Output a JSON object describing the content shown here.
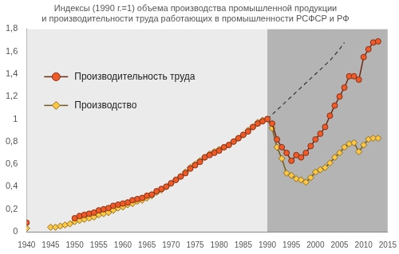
{
  "chart_data": {
    "type": "line",
    "title": [
      "Индексы (1990 г.=1) объема производства промышленной продукции",
      "и производительности труда работающих в промышленности РСФСР и РФ"
    ],
    "x": [
      1940,
      1941,
      1942,
      1943,
      1944,
      1945,
      1946,
      1947,
      1948,
      1949,
      1950,
      1951,
      1952,
      1953,
      1954,
      1955,
      1956,
      1957,
      1958,
      1959,
      1960,
      1961,
      1962,
      1963,
      1964,
      1965,
      1966,
      1967,
      1968,
      1969,
      1970,
      1971,
      1972,
      1973,
      1974,
      1975,
      1976,
      1977,
      1978,
      1979,
      1980,
      1981,
      1982,
      1983,
      1984,
      1985,
      1986,
      1987,
      1988,
      1989,
      1990,
      1991,
      1992,
      1993,
      1994,
      1995,
      1996,
      1997,
      1998,
      1999,
      2000,
      2001,
      2002,
      2003,
      2004,
      2005,
      2006,
      2007,
      2008,
      2009,
      2010,
      2011,
      2012,
      2013
    ],
    "series": [
      {
        "name": "Производительность труда",
        "color": "#f05a28",
        "marker": "circle",
        "line_style": "solid",
        "values": [
          0.08,
          null,
          null,
          null,
          null,
          null,
          null,
          null,
          null,
          null,
          0.12,
          0.14,
          0.15,
          0.16,
          0.17,
          0.19,
          0.2,
          0.21,
          0.23,
          0.24,
          0.25,
          0.26,
          0.28,
          0.29,
          0.3,
          0.32,
          0.33,
          0.36,
          0.38,
          0.4,
          0.43,
          0.46,
          0.49,
          0.52,
          0.56,
          0.59,
          0.62,
          0.66,
          0.68,
          0.7,
          0.72,
          0.75,
          0.77,
          0.8,
          0.83,
          0.86,
          0.89,
          0.93,
          0.96,
          0.98,
          1.0,
          0.96,
          0.82,
          0.75,
          0.7,
          0.63,
          0.68,
          0.66,
          0.7,
          0.76,
          0.82,
          0.87,
          0.93,
          1.03,
          1.12,
          1.2,
          1.28,
          1.38,
          1.38,
          1.35,
          1.55,
          1.62,
          1.68,
          1.69
        ]
      },
      {
        "name": "Производство",
        "color": "#ffc840",
        "marker": "diamond",
        "line_style": "solid",
        "values": [
          0.03,
          null,
          null,
          null,
          null,
          0.04,
          0.04,
          0.05,
          0.06,
          0.07,
          0.09,
          0.1,
          0.11,
          0.12,
          0.13,
          0.15,
          0.16,
          0.17,
          0.19,
          0.21,
          0.22,
          0.24,
          0.25,
          0.27,
          0.28,
          0.3,
          0.32,
          0.35,
          0.37,
          0.4,
          0.43,
          0.46,
          0.49,
          0.53,
          0.57,
          0.6,
          0.63,
          0.66,
          0.69,
          0.71,
          0.73,
          0.75,
          0.77,
          0.8,
          0.83,
          0.86,
          0.9,
          0.93,
          0.97,
          0.99,
          1.0,
          0.92,
          0.75,
          0.65,
          0.52,
          0.5,
          0.47,
          0.46,
          0.44,
          0.48,
          0.53,
          0.55,
          0.57,
          0.61,
          0.66,
          0.7,
          0.75,
          0.78,
          0.79,
          0.71,
          0.77,
          0.82,
          0.83,
          0.83
        ]
      },
      {
        "color": "#333333",
        "marker": "none",
        "line_style": "dashed",
        "values": [
          null,
          null,
          null,
          null,
          null,
          null,
          null,
          null,
          null,
          null,
          null,
          null,
          null,
          null,
          null,
          null,
          null,
          null,
          null,
          null,
          null,
          null,
          null,
          null,
          null,
          null,
          null,
          null,
          null,
          null,
          null,
          null,
          null,
          null,
          null,
          null,
          null,
          null,
          null,
          null,
          null,
          null,
          null,
          null,
          null,
          null,
          null,
          null,
          null,
          null,
          1.0,
          1.04,
          1.08,
          1.12,
          1.16,
          1.2,
          1.24,
          1.28,
          1.32,
          1.36,
          1.4,
          1.44,
          1.48,
          1.52,
          1.57,
          1.62,
          1.68,
          null,
          null,
          null,
          null,
          null,
          null,
          null
        ]
      }
    ],
    "regions": [
      {
        "xlim": [
          1940,
          1990
        ],
        "color": "#ebebeb"
      },
      {
        "xlim": [
          1990,
          2015
        ],
        "color": "#b4b4b4"
      }
    ],
    "xlim": [
      1940,
      2015
    ],
    "xticks": [
      1940,
      1945,
      1950,
      1955,
      1960,
      1965,
      1970,
      1975,
      1980,
      1985,
      1990,
      1995,
      2000,
      2005,
      2010,
      2015
    ],
    "ylim": [
      0,
      1.8
    ],
    "yticks": [
      0,
      {
        "value": 0.2,
        "label": "0,2"
      },
      {
        "value": 0.4,
        "label": "0,4"
      },
      {
        "value": 0.6,
        "label": "0,6"
      },
      {
        "value": 0.8,
        "label": "0,8"
      },
      1,
      {
        "value": 1.2,
        "label": "1,2"
      },
      {
        "value": 1.4,
        "label": "1,4"
      },
      {
        "value": 1.6,
        "label": "1,6"
      },
      {
        "value": 1.8,
        "label": "1,8"
      }
    ],
    "grid": false,
    "legend": "upper left"
  }
}
